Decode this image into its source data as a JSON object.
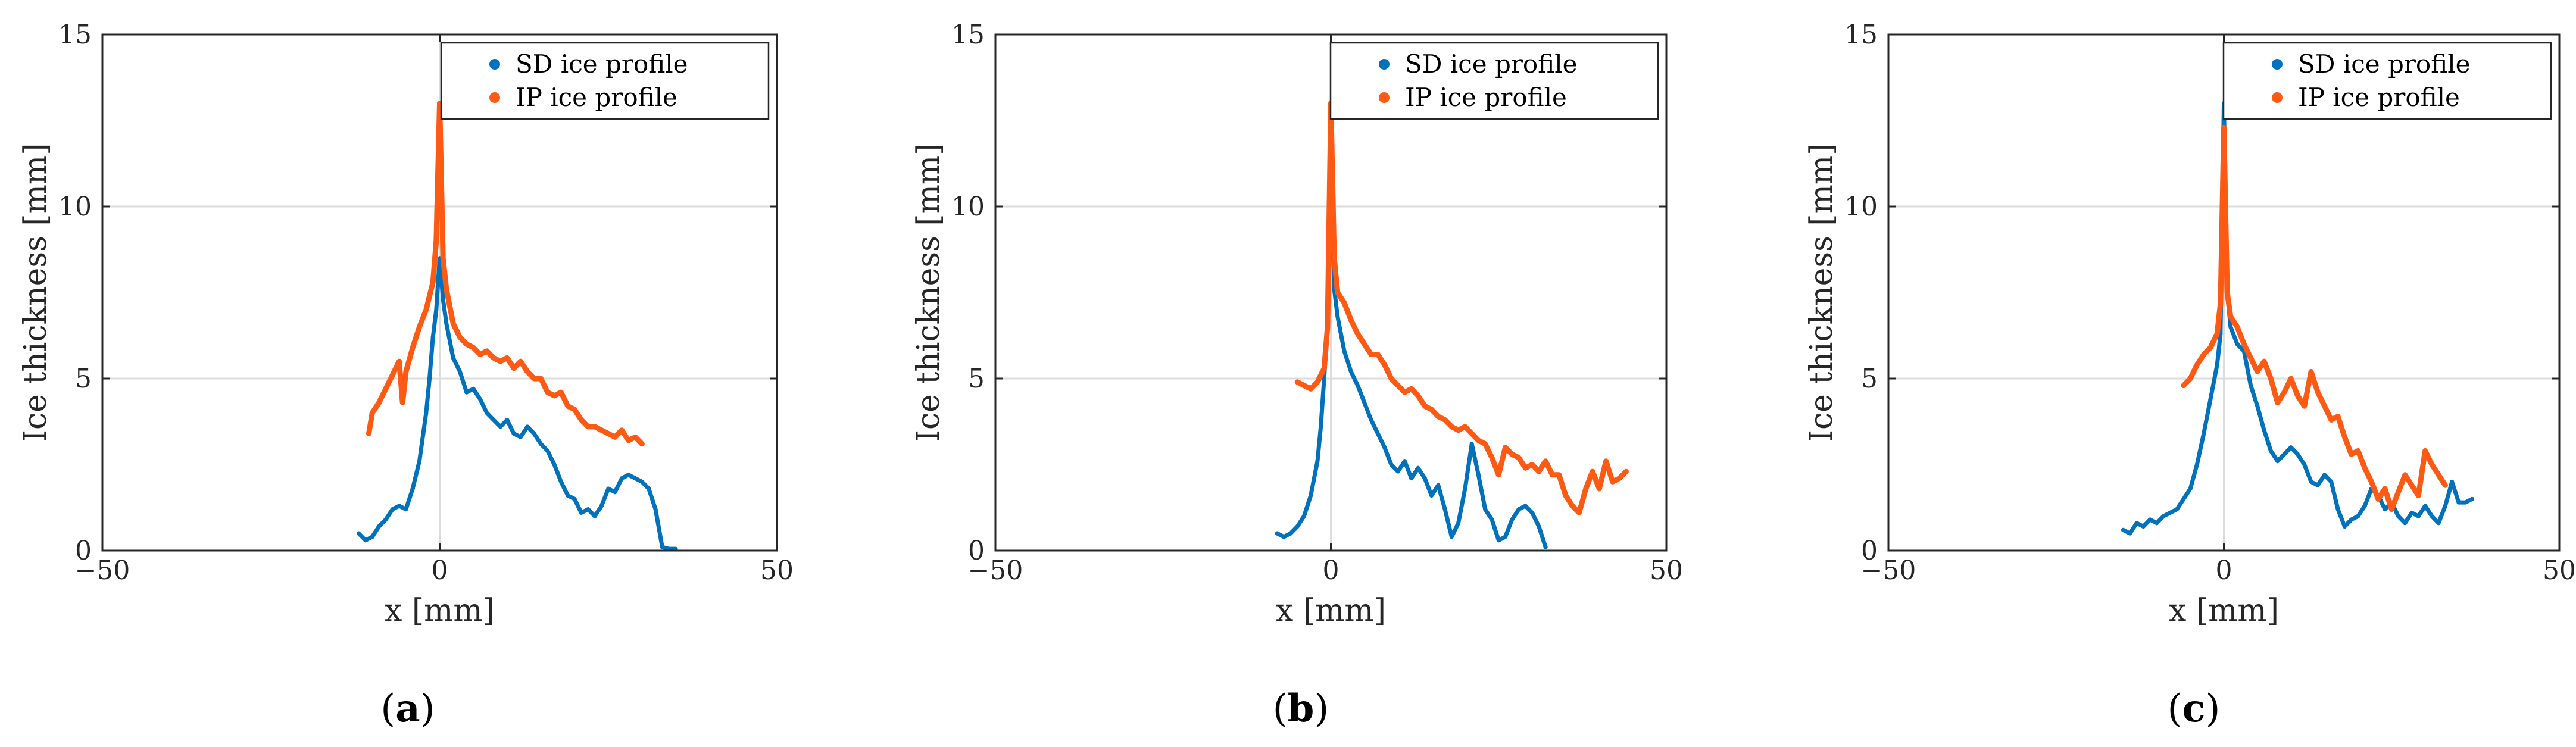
{
  "colors": {
    "sd": "#0072BD",
    "ip": "#FF5A14",
    "grid": "#DCDCDC",
    "axis": "#262626",
    "background": "#FFFFFF"
  },
  "chart_data": [
    {
      "type": "line",
      "caption": {
        "open": "(",
        "letter": "a",
        "close": ")"
      },
      "xlabel": "x [mm]",
      "ylabel": "Ice thickness [mm]",
      "xlim": [
        -50,
        50
      ],
      "ylim": [
        0,
        15
      ],
      "xticks": [
        -50,
        0,
        50
      ],
      "xtick_labels": [
        "−50",
        "0",
        "50"
      ],
      "yticks": [
        0,
        5,
        10,
        15
      ],
      "ytick_labels": [
        "0",
        "5",
        "10",
        "15"
      ],
      "legend": {
        "position": "top-right",
        "entries": [
          "SD ice profile",
          "IP ice profile"
        ]
      },
      "series": [
        {
          "name": "SD ice profile",
          "x": [
            -12,
            -11,
            -10,
            -9,
            -8,
            -7,
            -6,
            -5,
            -4,
            -3,
            -2,
            -1.5,
            -1,
            -0.5,
            0,
            0.5,
            1,
            2,
            3,
            4,
            5,
            6,
            7,
            8,
            9,
            10,
            11,
            12,
            13,
            14,
            15,
            16,
            17,
            18,
            19,
            20,
            21,
            22,
            23,
            24,
            25,
            26,
            27,
            28,
            29,
            30,
            31,
            32,
            33,
            34,
            35
          ],
          "y": [
            0.5,
            0.3,
            0.4,
            0.7,
            0.9,
            1.2,
            1.3,
            1.2,
            1.8,
            2.6,
            4.0,
            5.0,
            6.2,
            7.0,
            8.5,
            7.3,
            6.6,
            5.6,
            5.2,
            4.6,
            4.7,
            4.4,
            4.0,
            3.8,
            3.6,
            3.8,
            3.4,
            3.3,
            3.6,
            3.4,
            3.1,
            2.9,
            2.5,
            2.0,
            1.6,
            1.5,
            1.1,
            1.2,
            1.0,
            1.3,
            1.8,
            1.7,
            2.1,
            2.2,
            2.1,
            2.0,
            1.8,
            1.2,
            0.1,
            0.05,
            0.05
          ]
        },
        {
          "name": "IP ice profile",
          "x": [
            -10.5,
            -10,
            -9,
            -8,
            -7,
            -6,
            -5.5,
            -5,
            -4,
            -3,
            -2,
            -1,
            -0.5,
            0,
            0.5,
            1,
            2,
            3,
            4,
            5,
            6,
            7,
            8,
            9,
            10,
            11,
            12,
            13,
            14,
            15,
            16,
            17,
            18,
            19,
            20,
            21,
            22,
            23,
            24,
            25,
            26,
            27,
            28,
            29,
            30
          ],
          "y": [
            3.4,
            4.0,
            4.3,
            4.7,
            5.1,
            5.5,
            4.3,
            5.2,
            5.9,
            6.5,
            7.0,
            7.8,
            9.0,
            13.0,
            8.5,
            7.6,
            6.6,
            6.2,
            6.0,
            5.9,
            5.7,
            5.8,
            5.6,
            5.5,
            5.6,
            5.3,
            5.5,
            5.2,
            5.0,
            5.0,
            4.6,
            4.5,
            4.6,
            4.2,
            4.1,
            3.8,
            3.6,
            3.6,
            3.5,
            3.4,
            3.3,
            3.5,
            3.2,
            3.3,
            3.1
          ]
        }
      ]
    },
    {
      "type": "line",
      "caption": {
        "open": "(",
        "letter": "b",
        "close": ")"
      },
      "xlabel": "x [mm]",
      "ylabel": "Ice thickness [mm]",
      "xlim": [
        -50,
        50
      ],
      "ylim": [
        0,
        15
      ],
      "xticks": [
        -50,
        0,
        50
      ],
      "xtick_labels": [
        "−50",
        "0",
        "50"
      ],
      "yticks": [
        0,
        5,
        10,
        15
      ],
      "ytick_labels": [
        "0",
        "5",
        "10",
        "15"
      ],
      "legend": {
        "position": "top-right",
        "entries": [
          "SD ice profile",
          "IP ice profile"
        ]
      },
      "series": [
        {
          "name": "SD ice profile",
          "x": [
            -8,
            -7,
            -6,
            -5,
            -4,
            -3,
            -2,
            -1.5,
            -1,
            -0.5,
            0,
            0.5,
            1,
            2,
            3,
            4,
            5,
            6,
            7,
            8,
            9,
            10,
            11,
            12,
            13,
            14,
            15,
            16,
            17,
            18,
            19,
            20,
            21,
            22,
            23,
            24,
            25,
            26,
            27,
            28,
            29,
            30,
            31,
            32
          ],
          "y": [
            0.5,
            0.4,
            0.5,
            0.7,
            1.0,
            1.6,
            2.6,
            3.6,
            5.0,
            6.5,
            11.0,
            7.6,
            6.8,
            5.8,
            5.2,
            4.8,
            4.3,
            3.8,
            3.4,
            3.0,
            2.5,
            2.3,
            2.6,
            2.1,
            2.4,
            2.1,
            1.6,
            1.9,
            1.2,
            0.4,
            0.8,
            1.8,
            3.1,
            2.2,
            1.2,
            0.9,
            0.3,
            0.4,
            0.9,
            1.2,
            1.3,
            1.1,
            0.7,
            0.1
          ]
        },
        {
          "name": "IP ice profile",
          "x": [
            -5,
            -4,
            -3,
            -2,
            -1,
            -0.5,
            0,
            0.5,
            1,
            2,
            3,
            4,
            5,
            6,
            7,
            8,
            9,
            10,
            11,
            12,
            13,
            14,
            15,
            16,
            17,
            18,
            19,
            20,
            21,
            22,
            23,
            24,
            25,
            26,
            27,
            28,
            29,
            30,
            31,
            32,
            33,
            34,
            35,
            36,
            37,
            38,
            39,
            40,
            41,
            42,
            43,
            44
          ],
          "y": [
            4.9,
            4.8,
            4.7,
            4.9,
            5.3,
            6.5,
            13.0,
            8.5,
            7.5,
            7.2,
            6.7,
            6.3,
            6.0,
            5.7,
            5.7,
            5.4,
            5.0,
            4.8,
            4.6,
            4.7,
            4.5,
            4.2,
            4.1,
            3.9,
            3.8,
            3.6,
            3.5,
            3.6,
            3.4,
            3.2,
            3.1,
            2.7,
            2.2,
            3.0,
            2.8,
            2.7,
            2.4,
            2.5,
            2.3,
            2.6,
            2.2,
            2.2,
            1.6,
            1.3,
            1.1,
            1.8,
            2.3,
            1.8,
            2.6,
            2.0,
            2.1,
            2.3
          ]
        }
      ]
    },
    {
      "type": "line",
      "caption": {
        "open": "(",
        "letter": "c",
        "close": ")"
      },
      "xlabel": "x [mm]",
      "ylabel": "Ice thickness [mm]",
      "xlim": [
        -50,
        50
      ],
      "ylim": [
        0,
        15
      ],
      "xticks": [
        -50,
        0,
        50
      ],
      "xtick_labels": [
        "−50",
        "0",
        "50"
      ],
      "yticks": [
        0,
        5,
        10,
        15
      ],
      "ytick_labels": [
        "0",
        "5",
        "10",
        "15"
      ],
      "legend": {
        "position": "top-right",
        "entries": [
          "SD ice profile",
          "IP ice profile"
        ]
      },
      "series": [
        {
          "name": "SD ice profile",
          "x": [
            -15,
            -14,
            -13,
            -12,
            -11,
            -10,
            -9,
            -8,
            -7,
            -6,
            -5,
            -4,
            -3,
            -2,
            -1,
            -0.5,
            0,
            0.5,
            1,
            2,
            3,
            4,
            5,
            6,
            7,
            8,
            9,
            10,
            11,
            12,
            13,
            14,
            15,
            16,
            17,
            18,
            19,
            20,
            21,
            22,
            23,
            24,
            25,
            26,
            27,
            28,
            29,
            30,
            31,
            32,
            33,
            34,
            35,
            36,
            37
          ],
          "y": [
            0.6,
            0.5,
            0.8,
            0.7,
            0.9,
            0.8,
            1.0,
            1.1,
            1.2,
            1.5,
            1.8,
            2.5,
            3.4,
            4.4,
            5.4,
            6.3,
            13.0,
            7.5,
            6.5,
            6.0,
            5.8,
            4.8,
            4.2,
            3.5,
            2.9,
            2.6,
            2.8,
            3.0,
            2.8,
            2.5,
            2.0,
            1.9,
            2.2,
            2.0,
            1.2,
            0.7,
            0.9,
            1.0,
            1.3,
            1.8,
            1.6,
            1.2,
            1.4,
            1.0,
            0.8,
            1.1,
            1.0,
            1.3,
            1.0,
            0.8,
            1.3,
            2.0,
            1.4,
            1.4,
            1.5
          ]
        },
        {
          "name": "IP ice profile",
          "x": [
            -6,
            -5,
            -4,
            -3,
            -2,
            -1,
            -0.5,
            0,
            0.5,
            1,
            2,
            3,
            4,
            5,
            6,
            7,
            8,
            9,
            10,
            11,
            12,
            13,
            14,
            15,
            16,
            17,
            18,
            19,
            20,
            21,
            22,
            23,
            24,
            25,
            26,
            27,
            28,
            29,
            30,
            31,
            32,
            33
          ],
          "y": [
            4.8,
            5.0,
            5.4,
            5.7,
            5.9,
            6.3,
            7.2,
            12.3,
            7.5,
            6.8,
            6.5,
            6.0,
            5.6,
            5.2,
            5.5,
            5.0,
            4.3,
            4.6,
            5.0,
            4.5,
            4.2,
            5.2,
            4.6,
            4.2,
            3.8,
            3.9,
            3.3,
            2.8,
            2.9,
            2.4,
            2.0,
            1.5,
            1.8,
            1.2,
            1.7,
            2.2,
            1.9,
            1.6,
            2.9,
            2.5,
            2.2,
            1.9
          ]
        }
      ]
    }
  ]
}
